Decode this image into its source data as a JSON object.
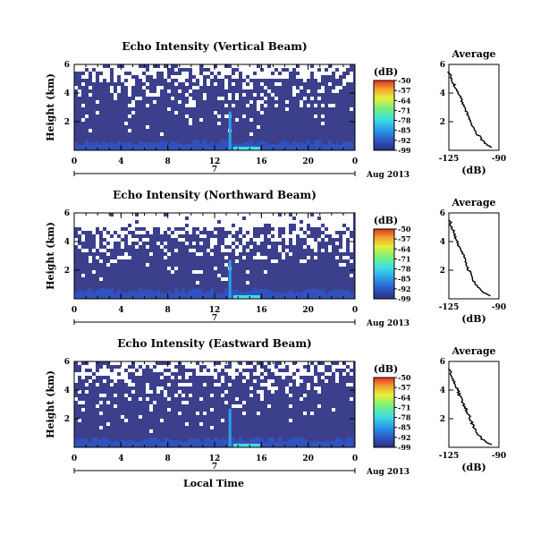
{
  "chart_data": [
    {
      "type": "heatmap",
      "title": "Echo Intensity (Vertical Beam)",
      "ylabel": "Height (km)",
      "x_ticks": [
        "0",
        "4",
        "8",
        "12",
        "16",
        "20",
        "0"
      ],
      "y_ticks": [
        "2",
        "4",
        "6"
      ],
      "xlim": [
        0,
        24
      ],
      "ylim": [
        0,
        6
      ],
      "date_marker": "7",
      "date_label": "Aug 2013",
      "colorbar": {
        "unit": "(dB)",
        "ticks": [
          "-50",
          "-57",
          "-64",
          "-71",
          "-78",
          "-85",
          "-92",
          "-99"
        ],
        "range": [
          -99,
          -50
        ]
      },
      "gap_density": 0.35,
      "average": {
        "title": "Average",
        "xlabel": "(dB)",
        "x_ticks": [
          "-125",
          "-90"
        ],
        "y_ticks": [
          "2",
          "4",
          "6"
        ],
        "xlim": [
          -125,
          -90
        ],
        "height_km": [
          0.2,
          0.5,
          1.0,
          1.5,
          2.0,
          2.5,
          3.0,
          3.5,
          4.0,
          4.5,
          5.0,
          5.5
        ],
        "db": [
          -95,
          -100,
          -104,
          -108,
          -110,
          -112,
          -114,
          -116,
          -118,
          -121,
          -123,
          -125
        ]
      }
    },
    {
      "type": "heatmap",
      "title": "Echo Intensity (Northward Beam)",
      "ylabel": "Height (km)",
      "x_ticks": [
        "0",
        "4",
        "8",
        "12",
        "16",
        "20",
        "0"
      ],
      "y_ticks": [
        "2",
        "4",
        "6"
      ],
      "xlim": [
        0,
        24
      ],
      "ylim": [
        0,
        6
      ],
      "date_marker": "7",
      "date_label": "Aug 2013",
      "colorbar": {
        "unit": "(dB)",
        "ticks": [
          "-50",
          "-57",
          "-64",
          "-71",
          "-78",
          "-85",
          "-92",
          "-99"
        ],
        "range": [
          -99,
          -50
        ]
      },
      "gap_density": 0.55,
      "average": {
        "title": "Average",
        "xlabel": "(dB)",
        "x_ticks": [
          "-125",
          "-90"
        ],
        "y_ticks": [
          "2",
          "4",
          "6"
        ],
        "xlim": [
          -125,
          -90
        ],
        "height_km": [
          0.2,
          0.5,
          1.0,
          1.5,
          2.0,
          2.5,
          3.0,
          3.5,
          4.0,
          4.5,
          5.0,
          5.5
        ],
        "db": [
          -96,
          -102,
          -106,
          -109,
          -111,
          -113,
          -115,
          -117,
          -119,
          -121,
          -123,
          -124
        ]
      }
    },
    {
      "type": "heatmap",
      "title": "Echo Intensity (Eastward Beam)",
      "ylabel": "Height (km)",
      "xlabel": "Local Time",
      "x_ticks": [
        "0",
        "4",
        "8",
        "12",
        "16",
        "20",
        "0"
      ],
      "y_ticks": [
        "2",
        "4",
        "6"
      ],
      "xlim": [
        0,
        24
      ],
      "ylim": [
        0,
        6
      ],
      "date_marker": "7",
      "date_label": "Aug 2013",
      "colorbar": {
        "unit": "(dB)",
        "ticks": [
          "-50",
          "-57",
          "-64",
          "-71",
          "-78",
          "-85",
          "-92",
          "-99"
        ],
        "range": [
          -99,
          -50
        ]
      },
      "gap_density": 0.3,
      "average": {
        "title": "Average",
        "xlabel": "(dB)",
        "x_ticks": [
          "-125",
          "-90"
        ],
        "y_ticks": [
          "2",
          "4",
          "6"
        ],
        "xlim": [
          -125,
          -90
        ],
        "height_km": [
          0.2,
          0.5,
          1.0,
          1.5,
          2.0,
          2.5,
          3.0,
          3.5,
          4.0,
          4.5,
          5.0,
          5.5
        ],
        "db": [
          -95,
          -101,
          -105,
          -108,
          -110,
          -112,
          -115,
          -117,
          -119,
          -121,
          -123,
          -125
        ]
      }
    }
  ],
  "colors": {
    "background": "#3b3f8c",
    "colormap": [
      "#2a2f85",
      "#2f58c8",
      "#2aa0e8",
      "#3fe0e0",
      "#7af07a",
      "#e8f03a",
      "#f0a030",
      "#e83020"
    ]
  }
}
